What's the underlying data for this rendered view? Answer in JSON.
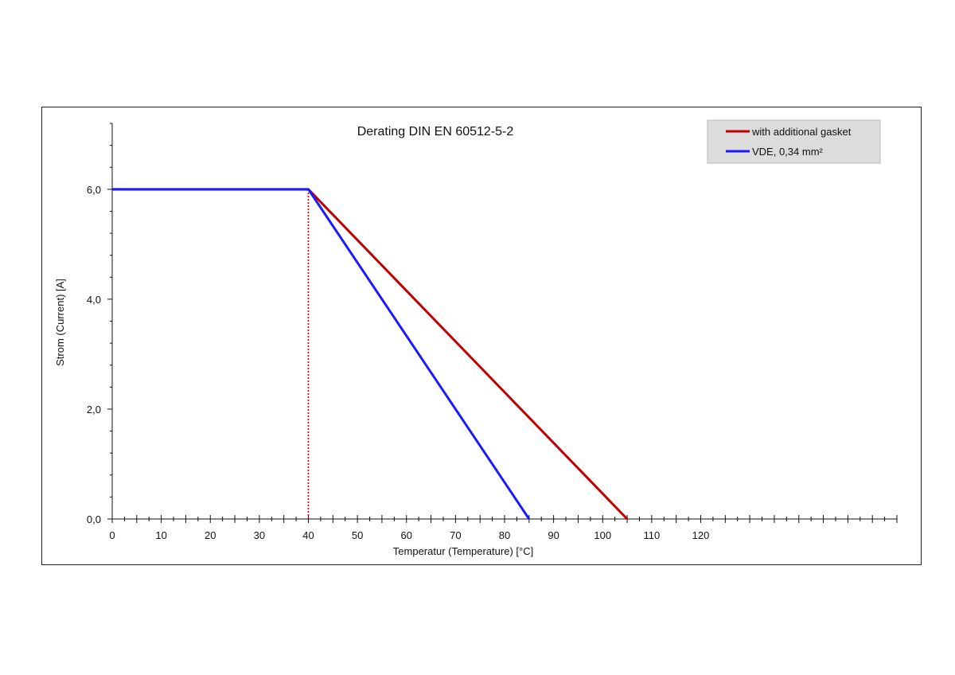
{
  "chart_data": {
    "type": "line",
    "title": "Derating DIN EN 60512-5-2",
    "xlabel": "Temperatur (Temperature) [°C]",
    "ylabel": "Strom (Current) [A]",
    "xlim": [
      0,
      160
    ],
    "ylim": [
      0,
      7.2
    ],
    "x_ticks": [
      0,
      10,
      20,
      30,
      40,
      50,
      60,
      70,
      80,
      90,
      100,
      110,
      120
    ],
    "x_tick_labels": [
      "0",
      "10",
      "20",
      "30",
      "40",
      "50",
      "60",
      "70",
      "80",
      "90",
      "100",
      "110",
      "120"
    ],
    "y_ticks": [
      0,
      2,
      4,
      6
    ],
    "y_tick_labels": [
      "0,0",
      "2,0",
      "4,0",
      "6,0"
    ],
    "grid": false,
    "legend_position": "top-right",
    "series": [
      {
        "name": "with additional gasket",
        "color": "#c00000",
        "x": [
          0,
          40,
          105
        ],
        "y": [
          6.0,
          6.0,
          0.0
        ]
      },
      {
        "name": "VDE, 0,34 mm²",
        "color": "#1a1aff",
        "x": [
          0,
          40,
          85
        ],
        "y": [
          6.0,
          6.0,
          0.0
        ]
      }
    ],
    "annotations": [
      {
        "type": "vertical-dotted-line",
        "x": 40,
        "y_from": 0,
        "y_to": 6.0,
        "color": "#c00000"
      }
    ]
  }
}
